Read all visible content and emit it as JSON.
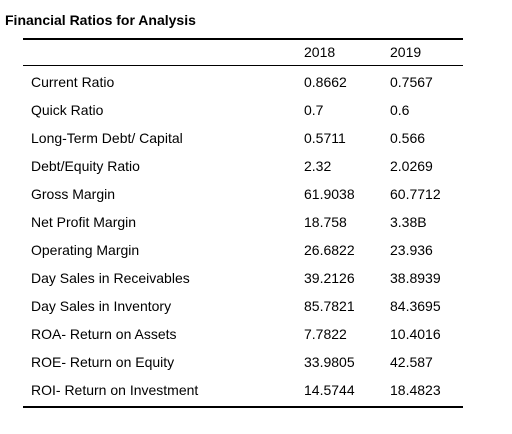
{
  "title": "Financial Ratios for Analysis",
  "columns": [
    "2018",
    "2019"
  ],
  "rows": [
    {
      "label": "Current Ratio",
      "v2018": "0.8662",
      "v2019": "0.7567"
    },
    {
      "label": "Quick Ratio",
      "v2018": "0.7",
      "v2019": "0.6"
    },
    {
      "label": "Long-Term Debt/ Capital",
      "v2018": "0.5711",
      "v2019": "0.566"
    },
    {
      "label": "Debt/Equity Ratio",
      "v2018": "2.32",
      "v2019": "2.0269"
    },
    {
      "label": "Gross Margin",
      "v2018": "61.9038",
      "v2019": "60.7712"
    },
    {
      "label": "Net Profit Margin",
      "v2018": "18.758",
      "v2019": "3.38B"
    },
    {
      "label": "Operating Margin",
      "v2018": "26.6822",
      "v2019": "23.936"
    },
    {
      "label": "Day Sales in Receivables",
      "v2018": "39.2126",
      "v2019": "38.8939"
    },
    {
      "label": "Day Sales in Inventory",
      "v2018": "85.7821",
      "v2019": "84.3695"
    },
    {
      "label": "ROA- Return on Assets",
      "v2018": "7.7822",
      "v2019": "10.4016"
    },
    {
      "label": "ROE- Return on Equity",
      "v2018": "33.9805",
      "v2019": "42.587"
    },
    {
      "label": "ROI- Return on Investment",
      "v2018": "14.5744",
      "v2019": "18.4823"
    }
  ]
}
